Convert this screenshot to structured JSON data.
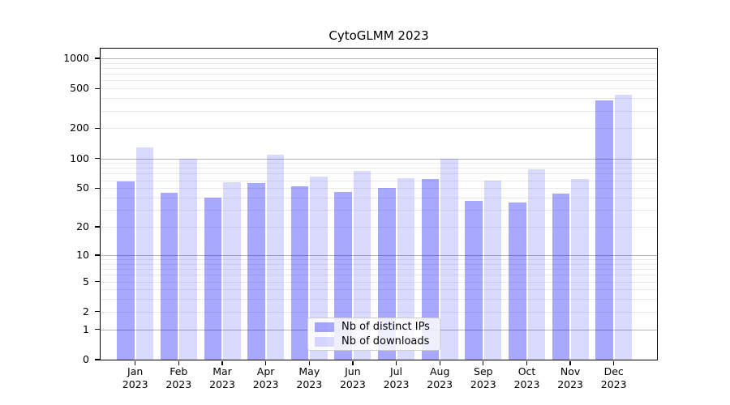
{
  "title": "CytoGLMM 2023",
  "axes": {
    "x_months": [
      "Jan",
      "Feb",
      "Mar",
      "Apr",
      "May",
      "Jun",
      "Jul",
      "Aug",
      "Sep",
      "Oct",
      "Nov",
      "Dec"
    ],
    "x_year": "2023",
    "y_tick_values": [
      0,
      1,
      2,
      5,
      10,
      20,
      50,
      100,
      200,
      500,
      1000
    ]
  },
  "legend": {
    "items": [
      {
        "label": "Nb of distinct IPs"
      },
      {
        "label": "Nb of downloads"
      }
    ]
  },
  "colors": {
    "bar_ips": "rgba(0,0,255,0.34)",
    "bar_downloads": "rgba(0,0,255,0.145)",
    "grid_major": "#b4b4b4",
    "grid_minor": "#eaeaea",
    "axis": "#000000",
    "text": "#000000"
  },
  "chart_data": {
    "type": "bar",
    "title": "CytoGLMM 2023",
    "categories": [
      "Jan 2023",
      "Feb 2023",
      "Mar 2023",
      "Apr 2023",
      "May 2023",
      "Jun 2023",
      "Jul 2023",
      "Aug 2023",
      "Sep 2023",
      "Oct 2023",
      "Nov 2023",
      "Dec 2023"
    ],
    "series": [
      {
        "name": "Nb of distinct IPs",
        "values": [
          58,
          45,
          40,
          56,
          52,
          46,
          50,
          62,
          37,
          36,
          44,
          380
        ]
      },
      {
        "name": "Nb of downloads",
        "values": [
          130,
          100,
          57,
          108,
          66,
          75,
          63,
          100,
          60,
          77,
          62,
          430
        ]
      }
    ],
    "xlabel": "",
    "ylabel": "",
    "y_scale": "log-like (position proportional to log10(1+value))",
    "y_ticks": [
      0,
      1,
      2,
      5,
      10,
      20,
      50,
      100,
      200,
      500,
      1000
    ],
    "ylim": [
      0,
      1250
    ],
    "grid": "horizontal major gridlines at 1,10,100,1000 and minor gridlines at 2-9 per decade",
    "legend_position": "lower center inside plot"
  }
}
